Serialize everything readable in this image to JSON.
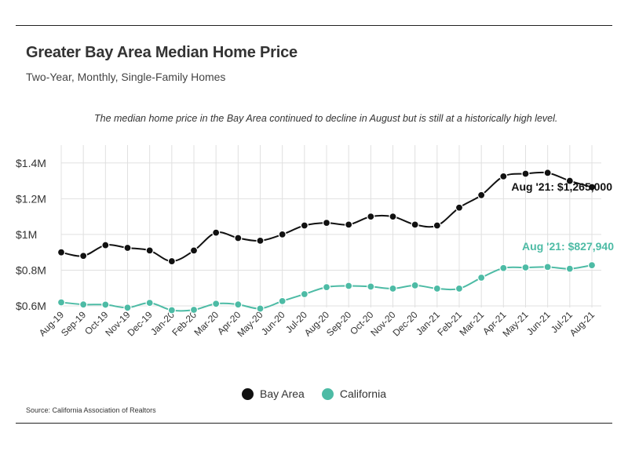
{
  "header": {
    "title": "Greater Bay Area Median Home Price",
    "subtitle": "Two-Year, Monthly, Single-Family Homes"
  },
  "annotation": "The median home price in the Bay Area continued to decline in August but is still at a historically high level.",
  "source": "Source:  California Association of Realtors",
  "colors": {
    "bay_area": "#111111",
    "california": "#4dbba5",
    "grid": "#e0e0e0"
  },
  "chart_data": {
    "type": "line",
    "categories": [
      "Aug-19",
      "Sep-19",
      "Oct-19",
      "Nov-19",
      "Dec-19",
      "Jan-20",
      "Feb-20",
      "Mar-20",
      "Apr-20",
      "May-20",
      "Jun-20",
      "Jul-20",
      "Aug-20",
      "Sep-20",
      "Oct-20",
      "Nov-20",
      "Dec-20",
      "Jan-21",
      "Feb-21",
      "Mar-21",
      "Apr-21",
      "May-21",
      "Jun-21",
      "Jul-21",
      "Aug-21"
    ],
    "series": [
      {
        "name": "Bay Area",
        "color": "#111111",
        "values": [
          900000,
          880000,
          940000,
          925000,
          910000,
          850000,
          910000,
          1010000,
          980000,
          965000,
          1000000,
          1050000,
          1065000,
          1055000,
          1100000,
          1100000,
          1055000,
          1050000,
          1150000,
          1220000,
          1325000,
          1340000,
          1345000,
          1300000,
          1265000
        ],
        "end_label": "Aug '21: $1,265,000"
      },
      {
        "name": "California",
        "color": "#4dbba5",
        "values": [
          620000,
          608000,
          607000,
          590000,
          617000,
          576000,
          578000,
          612000,
          608000,
          585000,
          627000,
          666000,
          705000,
          712000,
          708000,
          697000,
          715000,
          697000,
          697000,
          758000,
          812000,
          815000,
          818000,
          808000,
          827940
        ],
        "end_label": "Aug '21: $827,940"
      }
    ],
    "yticks": [
      {
        "value": 600000,
        "label": "$0.6M"
      },
      {
        "value": 800000,
        "label": "$0.8M"
      },
      {
        "value": 1000000,
        "label": "$1M"
      },
      {
        "value": 1200000,
        "label": "$1.2M"
      },
      {
        "value": 1400000,
        "label": "$1.4M"
      }
    ],
    "ylim": [
      500000,
      1400000
    ],
    "grid": true,
    "legend": "bottom-center"
  }
}
